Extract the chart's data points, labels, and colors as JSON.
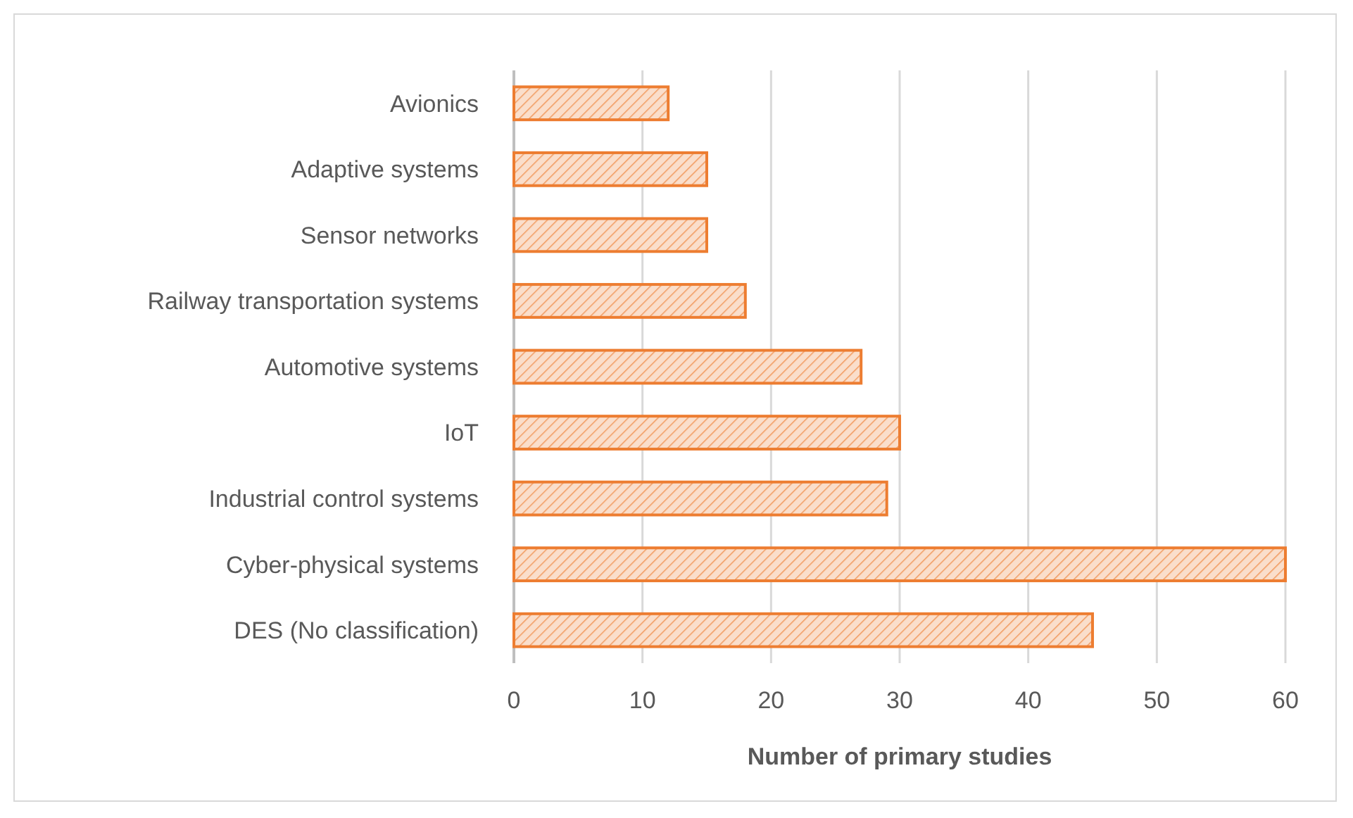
{
  "chart_data": {
    "type": "bar",
    "orientation": "horizontal",
    "xlabel": "Number of primary studies",
    "categories": [
      "Avionics",
      "Adaptive systems",
      "Sensor networks",
      "Railway transportation systems",
      "Automotive systems",
      "IoT",
      "Industrial control systems",
      "Cyber-physical systems",
      "DES (No classification)"
    ],
    "values": [
      12,
      15,
      15,
      18,
      27,
      30,
      29,
      60,
      45
    ],
    "color": "#ed7d31",
    "xlim": [
      0,
      60
    ],
    "xticks": [
      0,
      10,
      20,
      30,
      40,
      50,
      60
    ],
    "grid": "x"
  }
}
